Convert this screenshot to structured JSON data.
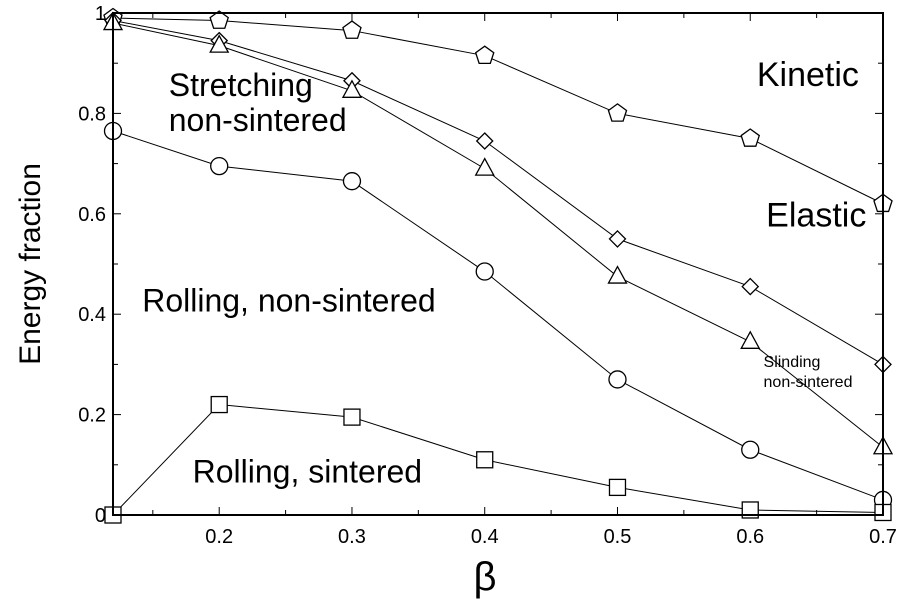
{
  "chart_data": {
    "type": "line",
    "xlabel": "β",
    "ylabel": "Energy fraction",
    "xlim": [
      0.12,
      0.7
    ],
    "ylim": [
      0,
      1
    ],
    "x_ticks": [
      {
        "value": 0.2,
        "label": "0.2"
      },
      {
        "value": 0.3,
        "label": "0.3"
      },
      {
        "value": 0.4,
        "label": "0.4"
      },
      {
        "value": 0.5,
        "label": "0.5"
      },
      {
        "value": 0.6,
        "label": "0.6"
      },
      {
        "value": 0.7,
        "label": "0.7"
      }
    ],
    "y_ticks": [
      {
        "value": 0,
        "label": "0"
      },
      {
        "value": 0.2,
        "label": "0.2"
      },
      {
        "value": 0.4,
        "label": "0.4"
      },
      {
        "value": 0.6,
        "label": "0.6"
      },
      {
        "value": 0.8,
        "label": "0.8"
      },
      {
        "value": 1,
        "label": "1"
      }
    ],
    "grid": false,
    "series": [
      {
        "marker": "pentagon",
        "x": [
          0.12,
          0.2,
          0.3,
          0.4,
          0.5,
          0.6,
          0.7
        ],
        "y": [
          0.99,
          0.985,
          0.965,
          0.915,
          0.8,
          0.75,
          0.62
        ]
      },
      {
        "marker": "diamond",
        "x": [
          0.12,
          0.2,
          0.3,
          0.4,
          0.5,
          0.6,
          0.7
        ],
        "y": [
          0.985,
          0.945,
          0.865,
          0.745,
          0.55,
          0.455,
          0.3
        ]
      },
      {
        "marker": "triangle",
        "x": [
          0.12,
          0.2,
          0.3,
          0.4,
          0.5,
          0.6,
          0.7
        ],
        "y": [
          0.98,
          0.935,
          0.845,
          0.69,
          0.475,
          0.345,
          0.135
        ]
      },
      {
        "marker": "circle",
        "x": [
          0.12,
          0.2,
          0.3,
          0.4,
          0.5,
          0.6,
          0.7
        ],
        "y": [
          0.765,
          0.695,
          0.665,
          0.485,
          0.27,
          0.13,
          0.03
        ]
      },
      {
        "marker": "square",
        "x": [
          0.12,
          0.2,
          0.3,
          0.4,
          0.5,
          0.6,
          0.7
        ],
        "y": [
          0.0,
          0.22,
          0.195,
          0.11,
          0.055,
          0.01,
          0.005
        ]
      }
    ],
    "annotations": [
      {
        "text": "Kinetic",
        "x": 0.605,
        "y": 0.855,
        "size": 34
      },
      {
        "text": "Elastic",
        "x": 0.612,
        "y": 0.575,
        "size": 34
      },
      {
        "text": "Stretching",
        "x": 0.162,
        "y": 0.835,
        "size": 32
      },
      {
        "text": "non-sintered",
        "x": 0.162,
        "y": 0.765,
        "size": 32
      },
      {
        "text": "Rolling, non-sintered",
        "x": 0.142,
        "y": 0.405,
        "size": 32
      },
      {
        "text": "Slinding",
        "x": 0.61,
        "y": 0.295,
        "size": 16
      },
      {
        "text": "non-sintered",
        "x": 0.61,
        "y": 0.255,
        "size": 16
      },
      {
        "text": "Rolling, sintered",
        "x": 0.18,
        "y": 0.065,
        "size": 32
      }
    ],
    "marker_color": "#000000",
    "marker_fill": "#ffffff",
    "line_color": "#000000"
  }
}
